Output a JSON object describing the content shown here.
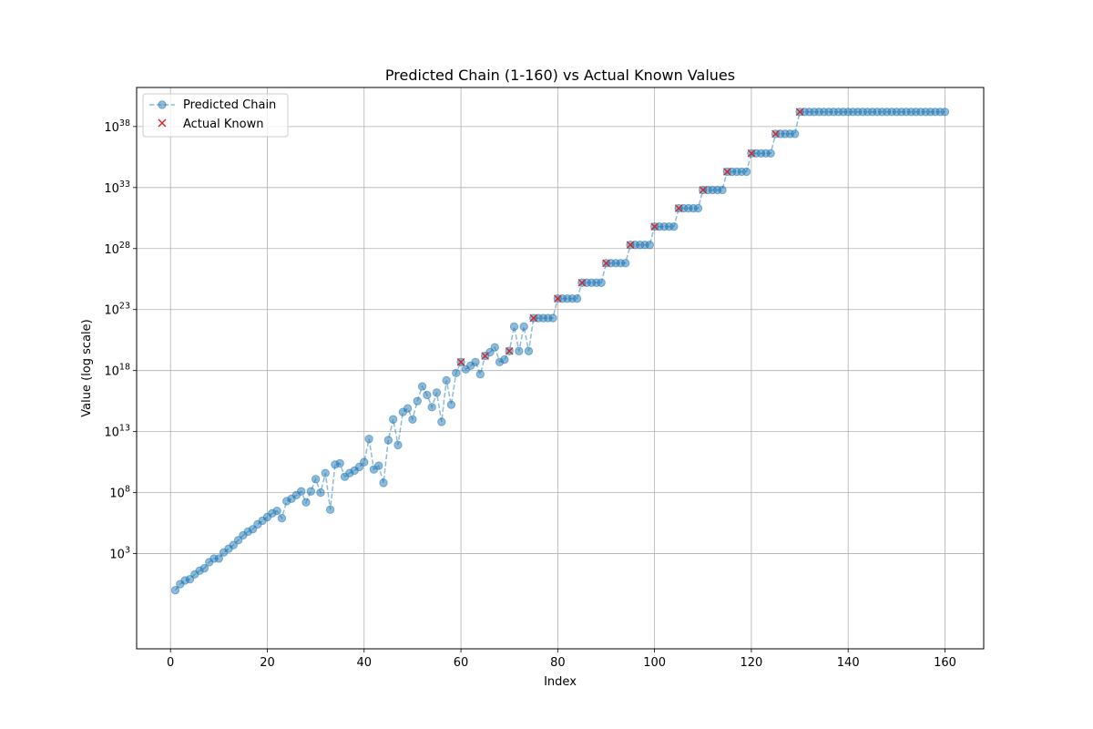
{
  "chart_data": {
    "type": "line",
    "title": "Predicted Chain (1-160) vs Actual Known Values",
    "xlabel": "Index",
    "ylabel": "Value (log scale)",
    "xlim": [
      -7,
      168
    ],
    "ylim_log10": [
      -4.8,
      41.2
    ],
    "y_scale": "log",
    "grid": true,
    "legend_position": "upper-left",
    "x_ticks": [
      0,
      20,
      40,
      60,
      80,
      100,
      120,
      140,
      160
    ],
    "y_ticks_exp": [
      3,
      8,
      13,
      18,
      23,
      28,
      33,
      38
    ],
    "colors": {
      "predicted": "#1f77b4",
      "actual": "#d62728"
    },
    "series": [
      {
        "name": "Predicted Chain",
        "style": "dashed-line-with-circles",
        "x": [
          1,
          2,
          3,
          4,
          5,
          6,
          7,
          8,
          9,
          10,
          11,
          12,
          13,
          14,
          15,
          16,
          17,
          18,
          19,
          20,
          21,
          22,
          23,
          24,
          25,
          26,
          27,
          28,
          29,
          30,
          31,
          32,
          33,
          34,
          35,
          36,
          37,
          38,
          39,
          40,
          41,
          42,
          43,
          44,
          45,
          46,
          47,
          48,
          49,
          50,
          51,
          52,
          53,
          54,
          55,
          56,
          57,
          58,
          59,
          60,
          61,
          62,
          63,
          64,
          65,
          66,
          67,
          68,
          69,
          70,
          71,
          72,
          73,
          74,
          75,
          76,
          77,
          78,
          79,
          80,
          81,
          82,
          83,
          84,
          85,
          86,
          87,
          88,
          89,
          90,
          91,
          92,
          93,
          94,
          95,
          96,
          97,
          98,
          99,
          100,
          101,
          102,
          103,
          104,
          105,
          106,
          107,
          108,
          109,
          110,
          111,
          112,
          113,
          114,
          115,
          116,
          117,
          118,
          119,
          120,
          121,
          122,
          123,
          124,
          125,
          126,
          127,
          128,
          129,
          130,
          131,
          132,
          133,
          134,
          135,
          136,
          137,
          138,
          139,
          140,
          141,
          142,
          143,
          144,
          145,
          146,
          147,
          148,
          149,
          150,
          151,
          152,
          153,
          154,
          155,
          156,
          157,
          158,
          159,
          160
        ],
        "log10_y": [
          0.0,
          0.5,
          0.8,
          0.9,
          1.3,
          1.6,
          1.8,
          2.3,
          2.6,
          2.6,
          3.1,
          3.4,
          3.7,
          4.1,
          4.5,
          4.8,
          5.0,
          5.4,
          5.7,
          6.0,
          6.3,
          6.5,
          5.9,
          7.3,
          7.5,
          7.8,
          8.1,
          7.2,
          8.1,
          9.1,
          8.0,
          9.6,
          6.6,
          10.3,
          10.4,
          9.3,
          9.6,
          9.8,
          10.1,
          10.5,
          12.4,
          9.9,
          10.2,
          8.8,
          12.3,
          14.0,
          11.9,
          14.6,
          14.9,
          14.0,
          15.5,
          16.7,
          16.0,
          15.0,
          16.2,
          13.8,
          17.2,
          15.2,
          17.8,
          18.7,
          18.1,
          18.4,
          18.7,
          17.7,
          19.2,
          19.5,
          19.9,
          18.7,
          18.9,
          19.6,
          21.6,
          19.6,
          21.6,
          19.6,
          22.3,
          22.3,
          22.3,
          22.3,
          22.3,
          23.9,
          23.9,
          23.9,
          23.9,
          23.9,
          25.2,
          25.2,
          25.2,
          25.2,
          25.2,
          26.8,
          26.8,
          26.8,
          26.8,
          26.8,
          28.3,
          28.3,
          28.3,
          28.3,
          28.3,
          29.8,
          29.8,
          29.8,
          29.8,
          29.8,
          31.3,
          31.3,
          31.3,
          31.3,
          31.3,
          32.8,
          32.8,
          32.8,
          32.8,
          32.8,
          34.3,
          34.3,
          34.3,
          34.3,
          34.3,
          35.8,
          35.8,
          35.8,
          35.8,
          35.8,
          37.4,
          37.4,
          37.4,
          37.4,
          37.4,
          39.2,
          39.2,
          39.2,
          39.2,
          39.2,
          39.2,
          39.2,
          39.2,
          39.2,
          39.2,
          39.2,
          39.2,
          39.2,
          39.2,
          39.2,
          39.2,
          39.2,
          39.2,
          39.2,
          39.2,
          39.2,
          39.2,
          39.2,
          39.2,
          39.2,
          39.2,
          39.2,
          39.2,
          39.2,
          39.2,
          39.2
        ]
      },
      {
        "name": "Actual Known",
        "style": "x-markers",
        "x": [
          60,
          65,
          70,
          75,
          80,
          85,
          90,
          95,
          100,
          105,
          110,
          115,
          120,
          125,
          130
        ],
        "log10_y": [
          18.7,
          19.2,
          19.6,
          22.3,
          23.9,
          25.2,
          26.8,
          28.3,
          29.8,
          31.3,
          32.8,
          34.3,
          35.8,
          37.4,
          39.2
        ]
      }
    ]
  }
}
